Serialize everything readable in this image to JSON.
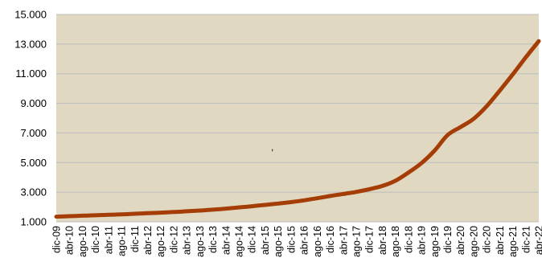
{
  "chart_data": {
    "type": "line",
    "title": "",
    "xlabel": "",
    "ylabel": "",
    "ylim": [
      1000,
      15000
    ],
    "y_ticks": [
      1000,
      3000,
      5000,
      7000,
      9000,
      11000,
      13000,
      15000
    ],
    "y_tick_labels": [
      "1.000",
      "3.000",
      "5.000",
      "7.000",
      "9.000",
      "11.000",
      "13.000",
      "15.000"
    ],
    "grid": "horizontal",
    "legend": "none",
    "x_tick_labels": [
      "dic-09",
      "abr-10",
      "ago-10",
      "dic-10",
      "abr-11",
      "ago-11",
      "dic-11",
      "abr-12",
      "ago-12",
      "dic-12",
      "abr-13",
      "ago-13",
      "dic-13",
      "abr-14",
      "ago-14",
      "dic-14",
      "abr-15",
      "ago-15",
      "dic-15",
      "abr-16",
      "ago-16",
      "dic-16",
      "abr-17",
      "ago-17",
      "dic-17",
      "abr-18",
      "ago-18",
      "dic-18",
      "abr-19",
      "ago-19",
      "dic-19",
      "abr-20",
      "ago-20",
      "dic-20",
      "abr-21",
      "ago-21",
      "dic-21",
      "abr-22"
    ],
    "x": [
      "dic-09",
      "abr-10",
      "ago-10",
      "dic-10",
      "abr-11",
      "ago-11",
      "dic-11",
      "abr-12",
      "ago-12",
      "dic-12",
      "abr-13",
      "ago-13",
      "dic-13",
      "abr-14",
      "ago-14",
      "dic-14",
      "abr-15",
      "ago-15",
      "dic-15",
      "abr-16",
      "ago-16",
      "dic-16",
      "abr-17",
      "ago-17",
      "dic-17",
      "abr-18",
      "ago-18",
      "dic-18",
      "abr-19",
      "ago-19",
      "dic-19",
      "abr-20",
      "ago-20",
      "dic-20",
      "abr-21",
      "ago-21",
      "dic-21",
      "abr-22"
    ],
    "series": [
      {
        "values": [
          1350,
          1380,
          1410,
          1440,
          1470,
          1500,
          1540,
          1580,
          1620,
          1660,
          1710,
          1760,
          1820,
          1890,
          1970,
          2050,
          2140,
          2230,
          2330,
          2450,
          2590,
          2740,
          2880,
          3020,
          3200,
          3420,
          3770,
          4320,
          4960,
          5800,
          6850,
          7400,
          7950,
          8800,
          9850,
          10950,
          12100,
          13200
        ]
      }
    ],
    "colors": {
      "plot_background": "#e0d8c1",
      "line": "#a53d06",
      "gridline": "#bcbcbc"
    },
    "annotations": [
      ","
    ]
  }
}
